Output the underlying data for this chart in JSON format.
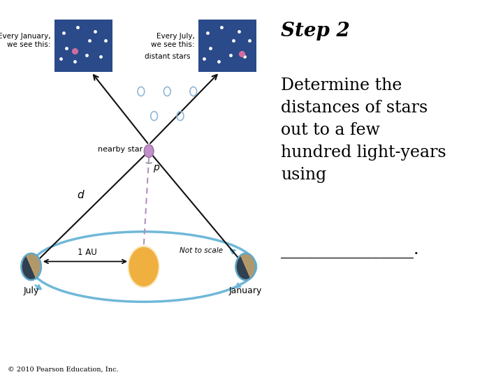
{
  "title": "Step 2",
  "body_text": "Determine the\ndistances of stars\nout to a few\nhundred light-years\nusing",
  "underline_text": "________________.",
  "copyright": "© 2010 Pearson Education, Inc.",
  "bg_color": "#ffffff",
  "title_fontsize": 20,
  "body_fontsize": 17,
  "diagram": {
    "nearby_star_label": "nearby star",
    "d_label": "d",
    "p_label": "p",
    "au_label": "1 AU",
    "not_to_scale": "Not to scale",
    "july_label": "July",
    "january_label": "January",
    "every_january": "Every January,\nwe see this:",
    "every_july": "Every July,\nwe see this:",
    "distant_stars": "distant stars",
    "star_color": "#c8a0d0",
    "sun_color": "#f0b040",
    "orbit_color": "#70b8d8",
    "sky_color_top": "#2a4a8a",
    "sky_color_bot": "#1a2a6a",
    "bg_color": "#ffffff",
    "open_circle_color": "#90b8d8",
    "line_color": "#111111",
    "dashed_color": "#b090c0"
  }
}
